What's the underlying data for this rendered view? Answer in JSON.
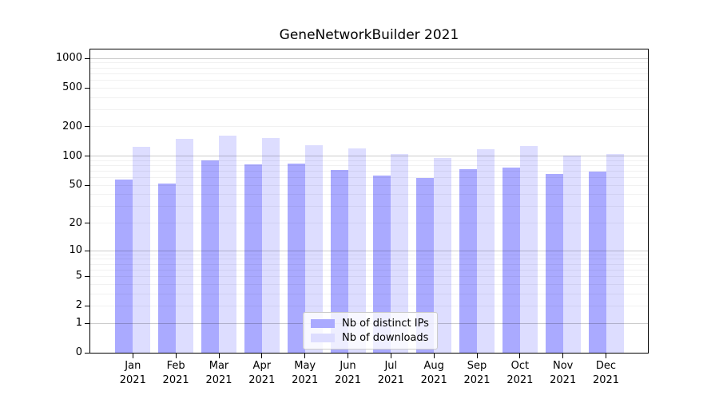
{
  "title": "GeneNetworkBuilder 2021",
  "chart_data": {
    "type": "bar",
    "title": "GeneNetworkBuilder 2021",
    "categories": [
      "Jan 2021",
      "Feb 2021",
      "Mar 2021",
      "Apr 2021",
      "May 2021",
      "Jun 2021",
      "Jul 2021",
      "Aug 2021",
      "Sep 2021",
      "Oct 2021",
      "Nov 2021",
      "Dec 2021"
    ],
    "series": [
      {
        "name": "Nb of distinct IPs",
        "color": "#aaaaff",
        "values": [
          57,
          52,
          90,
          83,
          84,
          72,
          63,
          60,
          74,
          77,
          65,
          69
        ]
      },
      {
        "name": "Nb of downloads",
        "color": "#ddddff",
        "values": [
          124,
          150,
          164,
          153,
          130,
          120,
          105,
          95,
          119,
          128,
          101,
          106
        ]
      }
    ],
    "xlabel": "",
    "ylabel": "",
    "yscale": "log10(1+y)",
    "ylim": [
      0,
      1235
    ],
    "yticks": [
      0,
      1,
      2,
      5,
      10,
      20,
      50,
      100,
      200,
      500,
      1000
    ],
    "gridlines": {
      "major": [
        1,
        10,
        100,
        1000
      ],
      "minor": [
        2,
        3,
        4,
        5,
        6,
        7,
        8,
        9,
        20,
        30,
        40,
        50,
        60,
        70,
        80,
        90,
        200,
        300,
        400,
        500,
        600,
        700,
        800,
        900
      ]
    },
    "grid": "on",
    "legend_position": "lower center"
  }
}
